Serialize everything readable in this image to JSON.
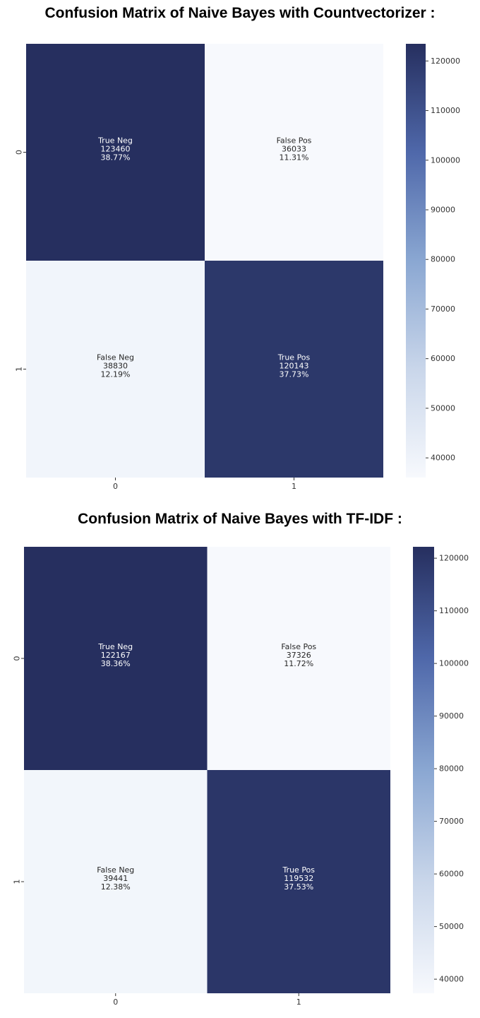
{
  "chart_data": [
    {
      "type": "heatmap",
      "title": "Confusion Matrix of Naive Bayes with Countvectorizer :",
      "x_tick_labels": [
        "0",
        "1"
      ],
      "y_tick_labels": [
        "0",
        "1"
      ],
      "cells": [
        {
          "row": 0,
          "col": 0,
          "label": "True Neg",
          "value": 123460,
          "percent": "38.77%"
        },
        {
          "row": 0,
          "col": 1,
          "label": "False Pos",
          "value": 36033,
          "percent": "11.31%"
        },
        {
          "row": 1,
          "col": 0,
          "label": "False Neg",
          "value": 38830,
          "percent": "12.19%"
        },
        {
          "row": 1,
          "col": 1,
          "label": "True Pos",
          "value": 120143,
          "percent": "37.73%"
        }
      ],
      "colorbar": {
        "vmin": 36033,
        "vmax": 123460,
        "ticks": [
          40000,
          50000,
          60000,
          70000,
          80000,
          90000,
          100000,
          110000,
          120000
        ]
      }
    },
    {
      "type": "heatmap",
      "title": "Confusion Matrix of Naive Bayes with TF-IDF :",
      "x_tick_labels": [
        "0",
        "1"
      ],
      "y_tick_labels": [
        "0",
        "1"
      ],
      "cells": [
        {
          "row": 0,
          "col": 0,
          "label": "True Neg",
          "value": 122167,
          "percent": "38.36%"
        },
        {
          "row": 0,
          "col": 1,
          "label": "False Pos",
          "value": 37326,
          "percent": "11.72%"
        },
        {
          "row": 1,
          "col": 0,
          "label": "False Neg",
          "value": 39441,
          "percent": "12.38%"
        },
        {
          "row": 1,
          "col": 1,
          "label": "True Pos",
          "value": 119532,
          "percent": "37.53%"
        }
      ],
      "colorbar": {
        "vmin": 37326,
        "vmax": 122167,
        "ticks": [
          40000,
          50000,
          60000,
          70000,
          80000,
          90000,
          100000,
          110000,
          120000
        ]
      }
    }
  ],
  "colors": {
    "low": "#f7f9fd",
    "mid1": "#c9d6ea",
    "mid2": "#8aa7d2",
    "mid3": "#4f68aa",
    "high": "#262f5f"
  }
}
